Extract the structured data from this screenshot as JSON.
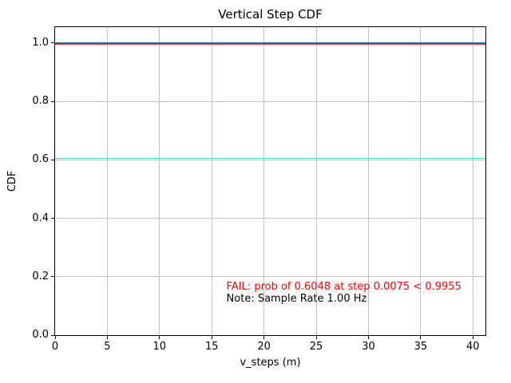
{
  "chart_data": {
    "type": "line",
    "title": "Vertical Step CDF",
    "xlabel": "v_steps (m)",
    "ylabel": "CDF",
    "xlim": [
      0,
      41.2
    ],
    "ylim": [
      0,
      1.054
    ],
    "grid": true,
    "grid_color": "#c3c3c3",
    "legend": "none",
    "xticks": [
      {
        "value": 0,
        "label": "0"
      },
      {
        "value": 5,
        "label": "5"
      },
      {
        "value": 10,
        "label": "10"
      },
      {
        "value": 15,
        "label": "15"
      },
      {
        "value": 20,
        "label": "20"
      },
      {
        "value": 25,
        "label": "25"
      },
      {
        "value": 30,
        "label": "30"
      },
      {
        "value": 35,
        "label": "35"
      },
      {
        "value": 40,
        "label": "40"
      }
    ],
    "yticks": [
      {
        "value": 0.0,
        "label": "0.0"
      },
      {
        "value": 0.2,
        "label": "0.2"
      },
      {
        "value": 0.4,
        "label": "0.4"
      },
      {
        "value": 0.6,
        "label": "0.6"
      },
      {
        "value": 0.8,
        "label": "0.8"
      },
      {
        "value": 1.0,
        "label": "1.0"
      }
    ],
    "series": [
      {
        "name": "cdf-curve-line",
        "y": 1.0,
        "color": "#1f77b4",
        "width": 2
      },
      {
        "name": "required-probability-line",
        "y": 0.9955,
        "color": "#d62728",
        "width": 2
      },
      {
        "name": "achieved-probability-line",
        "y": 0.6048,
        "color": "#48d1cc",
        "width": 1.6
      }
    ],
    "annotations": [
      {
        "name": "fail-annotation",
        "text": "FAIL: prob of 0.6048 at step 0.0075 < 0.9955",
        "color": "#ff0000",
        "x": 16.4,
        "y": 0.152
      },
      {
        "name": "note-annotation",
        "text": "Note: Sample Rate 1.00 Hz",
        "color": "#000000",
        "x": 16.4,
        "y": 0.111
      }
    ]
  }
}
